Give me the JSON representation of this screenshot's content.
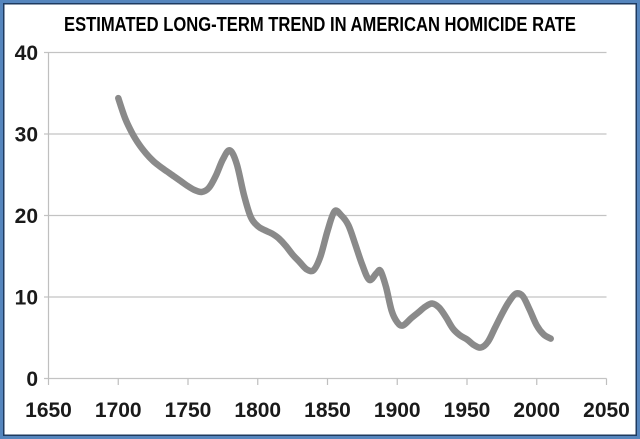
{
  "window": {
    "background": "#ffffff",
    "frame_outer_color": "#5585bd",
    "frame_inner_color": "#1e3a5f"
  },
  "chart_data": {
    "type": "line",
    "title": "ESTIMATED LONG-TERM TREND IN AMERICAN HOMICIDE RATE",
    "xlabel": "",
    "ylabel": "",
    "xlim": [
      1650,
      2050
    ],
    "ylim": [
      0,
      40
    ],
    "x_ticks": [
      "1650",
      "1700",
      "1750",
      "1800",
      "1850",
      "1900",
      "1950",
      "2000",
      "2050"
    ],
    "y_ticks": [
      "0",
      "10",
      "20",
      "30",
      "40"
    ],
    "grid": "horizontal",
    "legend": "none",
    "colors": {
      "line": "#8a8a8a",
      "grid": "#c3c3c3",
      "axis": "#bfbfbf",
      "tick_labels": "#1a1a1a",
      "title": "#000000"
    },
    "series": [
      {
        "name": "homicide_rate",
        "stroke_width": 6.5,
        "points": [
          [
            1700,
            34.4
          ],
          [
            1705,
            31.9
          ],
          [
            1710,
            30.1
          ],
          [
            1715,
            28.7
          ],
          [
            1720,
            27.6
          ],
          [
            1725,
            26.7
          ],
          [
            1730,
            26.0
          ],
          [
            1735,
            25.4
          ],
          [
            1740,
            24.8
          ],
          [
            1745,
            24.2
          ],
          [
            1750,
            23.6
          ],
          [
            1755,
            23.1
          ],
          [
            1760,
            22.9
          ],
          [
            1765,
            23.4
          ],
          [
            1770,
            24.9
          ],
          [
            1775,
            26.9
          ],
          [
            1780,
            28.0
          ],
          [
            1785,
            26.3
          ],
          [
            1790,
            22.6
          ],
          [
            1795,
            19.8
          ],
          [
            1800,
            18.7
          ],
          [
            1805,
            18.2
          ],
          [
            1810,
            17.8
          ],
          [
            1815,
            17.2
          ],
          [
            1820,
            16.3
          ],
          [
            1825,
            15.2
          ],
          [
            1830,
            14.3
          ],
          [
            1835,
            13.4
          ],
          [
            1840,
            13.3
          ],
          [
            1845,
            15.0
          ],
          [
            1850,
            18.1
          ],
          [
            1855,
            20.5
          ],
          [
            1860,
            20.0
          ],
          [
            1865,
            18.8
          ],
          [
            1870,
            16.4
          ],
          [
            1875,
            13.9
          ],
          [
            1880,
            12.1
          ],
          [
            1885,
            12.9
          ],
          [
            1888,
            13.2
          ],
          [
            1892,
            11.2
          ],
          [
            1896,
            8.3
          ],
          [
            1900,
            6.9
          ],
          [
            1904,
            6.5
          ],
          [
            1910,
            7.4
          ],
          [
            1915,
            8.1
          ],
          [
            1920,
            8.8
          ],
          [
            1925,
            9.2
          ],
          [
            1930,
            8.7
          ],
          [
            1935,
            7.5
          ],
          [
            1940,
            6.1
          ],
          [
            1945,
            5.3
          ],
          [
            1950,
            4.8
          ],
          [
            1955,
            4.1
          ],
          [
            1960,
            3.8
          ],
          [
            1965,
            4.5
          ],
          [
            1970,
            6.2
          ],
          [
            1975,
            7.9
          ],
          [
            1980,
            9.4
          ],
          [
            1985,
            10.4
          ],
          [
            1990,
            10.1
          ],
          [
            1995,
            8.4
          ],
          [
            2000,
            6.5
          ],
          [
            2005,
            5.4
          ],
          [
            2010,
            4.9
          ]
        ]
      }
    ]
  }
}
